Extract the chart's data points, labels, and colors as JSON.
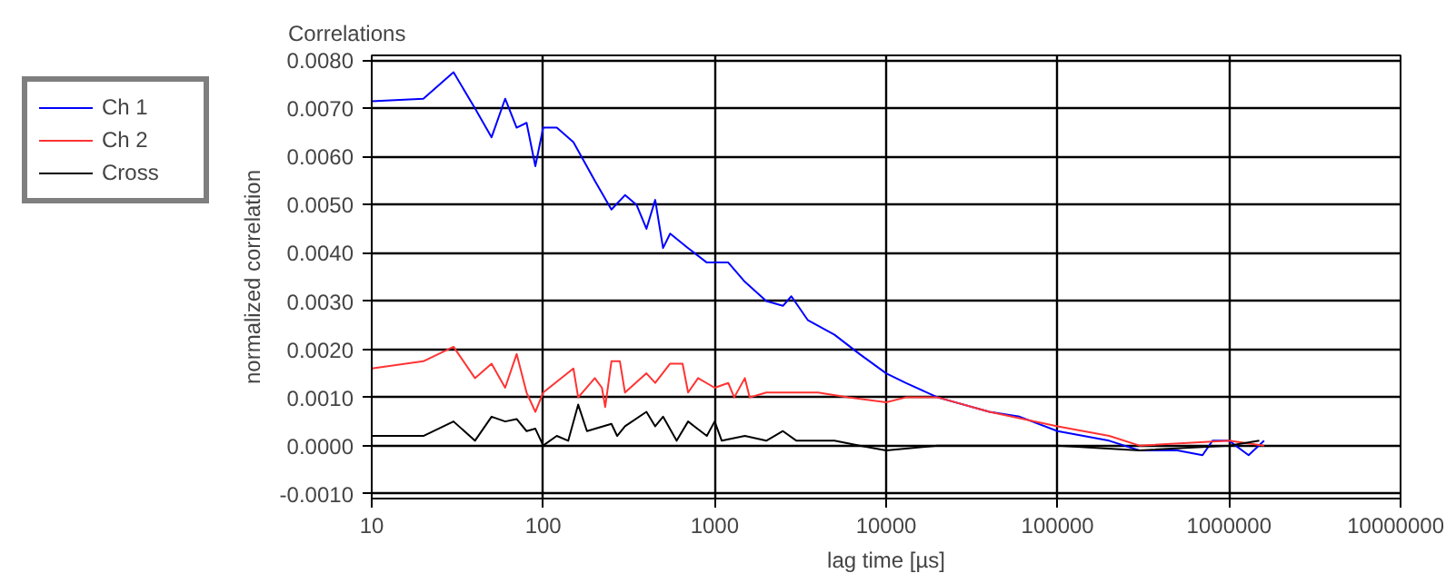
{
  "chart_data": {
    "type": "line",
    "title": "Correlations",
    "xlabel": "lag time [µs]",
    "ylabel": "normalized correlation",
    "log": "x",
    "grid": true,
    "legend": "left",
    "xlim": [
      10,
      10000000
    ],
    "xticks": [
      10,
      100,
      1000,
      10000,
      100000,
      1000000,
      10000000
    ],
    "ylim": [
      -0.0011,
      0.0081
    ],
    "yticks": [
      {
        "value": -0.001,
        "label": "-0.0010"
      },
      {
        "value": 0,
        "label": "0.0000"
      },
      {
        "value": 0.001,
        "label": "0.0010"
      },
      {
        "value": 0.002,
        "label": "0.0020"
      },
      {
        "value": 0.003,
        "label": "0.0030"
      },
      {
        "value": 0.004,
        "label": "0.0040"
      },
      {
        "value": 0.005,
        "label": "0.0050"
      },
      {
        "value": 0.006,
        "label": "0.0060"
      },
      {
        "value": 0.007,
        "label": "0.0070"
      },
      {
        "value": 0.008,
        "label": "0.0080"
      }
    ],
    "series": [
      {
        "name": "Ch 1",
        "color": "#0000ff",
        "x": [
          10,
          20,
          30,
          40,
          50,
          60,
          70,
          80,
          90,
          100,
          120,
          150,
          200,
          250,
          300,
          350,
          400,
          450,
          500,
          550,
          700,
          900,
          1200,
          1500,
          2000,
          2500,
          2800,
          3500,
          5000,
          7000,
          10000,
          13000,
          20000,
          40000,
          60000,
          100000,
          200000,
          300000,
          500000,
          700000,
          800000,
          1000000,
          1300000,
          1600000
        ],
        "values": [
          0.00715,
          0.0072,
          0.00775,
          0.007,
          0.0064,
          0.0072,
          0.0066,
          0.0067,
          0.0058,
          0.0066,
          0.0066,
          0.0063,
          0.0055,
          0.0049,
          0.0052,
          0.005,
          0.0045,
          0.0051,
          0.0041,
          0.0044,
          0.0041,
          0.0038,
          0.0038,
          0.0034,
          0.003,
          0.0029,
          0.0031,
          0.0026,
          0.0023,
          0.0019,
          0.0015,
          0.0013,
          0.001,
          0.0007,
          0.0006,
          0.0003,
          0.0001,
          -0.0001,
          -0.0001,
          -0.0002,
          0.0001,
          0.0001,
          -0.0002,
          0.0001
        ]
      },
      {
        "name": "Ch 2",
        "color": "#ff3333",
        "x": [
          10,
          20,
          30,
          40,
          50,
          60,
          70,
          80,
          90,
          100,
          150,
          160,
          200,
          220,
          230,
          250,
          280,
          300,
          400,
          450,
          550,
          650,
          700,
          800,
          1000,
          1200,
          1300,
          1500,
          1600,
          2000,
          3000,
          4000,
          6000,
          10000,
          13000,
          20000,
          40000,
          100000,
          200000,
          300000,
          1000000,
          1600000
        ],
        "values": [
          0.0016,
          0.00175,
          0.00205,
          0.0014,
          0.0017,
          0.0012,
          0.0019,
          0.0011,
          0.0007,
          0.0011,
          0.0016,
          0.001,
          0.0014,
          0.0012,
          0.0008,
          0.00175,
          0.00175,
          0.0011,
          0.0015,
          0.0013,
          0.0017,
          0.0017,
          0.0011,
          0.0014,
          0.0012,
          0.0013,
          0.001,
          0.0014,
          0.001,
          0.0011,
          0.0011,
          0.0011,
          0.001,
          0.0009,
          0.001,
          0.001,
          0.0007,
          0.0004,
          0.0002,
          0.0,
          0.0001,
          0.0
        ]
      },
      {
        "name": "Cross",
        "color": "#000000",
        "x": [
          10,
          20,
          30,
          40,
          50,
          60,
          70,
          80,
          90,
          100,
          120,
          140,
          160,
          180,
          250,
          270,
          300,
          400,
          450,
          500,
          600,
          700,
          900,
          1000,
          1100,
          1500,
          2000,
          2500,
          3000,
          5000,
          7000,
          10000,
          20000,
          100000,
          300000,
          1000000,
          1500000
        ],
        "values": [
          0.0002,
          0.0002,
          0.0005,
          0.0001,
          0.0006,
          0.0005,
          0.00055,
          0.0003,
          0.00035,
          0.0,
          0.0002,
          0.0001,
          0.00085,
          0.0003,
          0.00045,
          0.0002,
          0.0004,
          0.0007,
          0.0004,
          0.0006,
          0.0001,
          0.0005,
          0.0002,
          0.0005,
          0.0001,
          0.0002,
          0.0001,
          0.0003,
          0.0001,
          0.0001,
          0.0,
          -0.0001,
          0.0,
          0.0,
          -0.0001,
          0.0,
          0.0001
        ]
      }
    ]
  }
}
